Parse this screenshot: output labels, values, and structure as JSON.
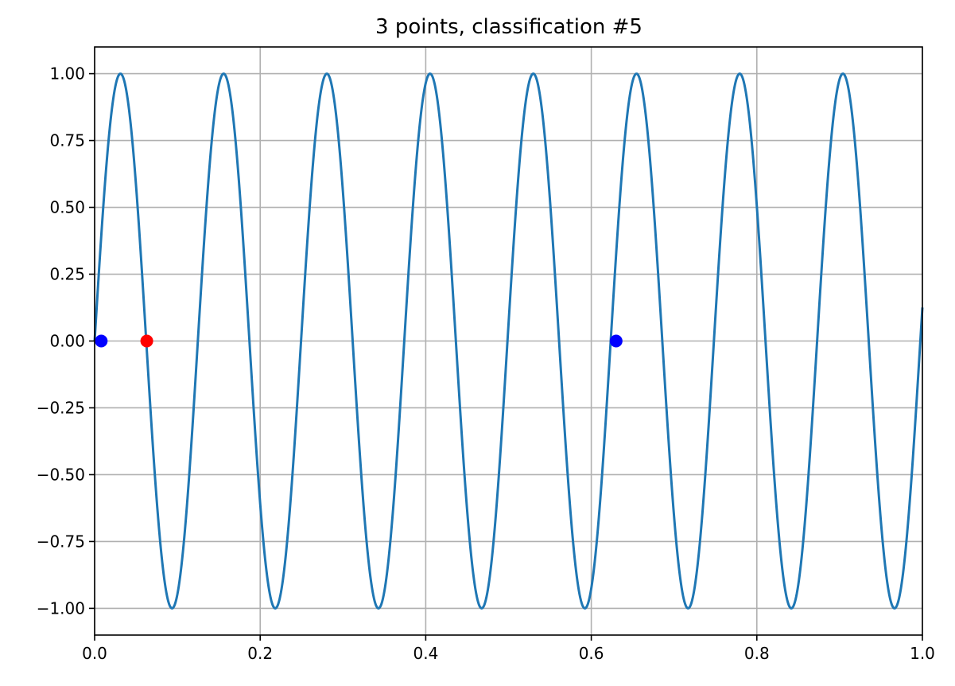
{
  "chart_data": {
    "type": "line",
    "title": "3 points, classification #5",
    "xlabel": "",
    "ylabel": "",
    "xlim": [
      0,
      1
    ],
    "ylim": [
      -1.1,
      1.1
    ],
    "grid": true,
    "xticks": [
      0.0,
      0.2,
      0.4,
      0.6,
      0.8,
      1.0
    ],
    "xtick_labels": [
      "0.0",
      "0.2",
      "0.4",
      "0.6",
      "0.8",
      "1.0"
    ],
    "yticks": [
      1.0,
      0.75,
      0.5,
      0.25,
      0.0,
      -0.25,
      -0.5,
      -0.75,
      -1.0
    ],
    "ytick_labels": [
      "1.00",
      "0.75",
      "0.50",
      "0.25",
      "0.00",
      "−0.25",
      "−0.50",
      "−0.75",
      "−1.00"
    ],
    "series": [
      {
        "kind": "line",
        "function": "sin",
        "frequency": 8.02,
        "amplitude": 1.0,
        "color": "#1f77b4"
      },
      {
        "kind": "scatter",
        "color": "#0000ff",
        "points": [
          {
            "x": 0.008,
            "y": 0.0
          },
          {
            "x": 0.63,
            "y": 0.0
          }
        ]
      },
      {
        "kind": "scatter",
        "color": "#ff0000",
        "points": [
          {
            "x": 0.063,
            "y": 0.0
          }
        ]
      }
    ]
  }
}
